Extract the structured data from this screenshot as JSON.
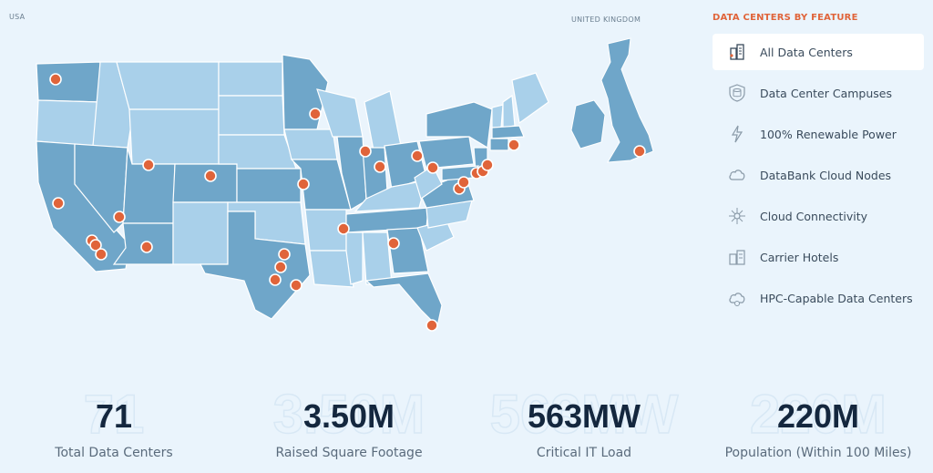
{
  "map": {
    "usa_label": "USA",
    "uk_label": "UNITED KINGDOM",
    "colors": {
      "dark_state": "#6fa6c9",
      "light_state": "#a9d0ea",
      "marker": "#e0643a"
    }
  },
  "features": {
    "heading": "DATA CENTERS BY FEATURE",
    "items": [
      {
        "label": "All Data Centers",
        "icon": "building-icon",
        "active": true
      },
      {
        "label": "Data Center Campuses",
        "icon": "shield-database-icon",
        "active": false
      },
      {
        "label": "100% Renewable Power",
        "icon": "lightning-icon",
        "active": false
      },
      {
        "label": "DataBank Cloud Nodes",
        "icon": "cloud-icon",
        "active": false
      },
      {
        "label": "Cloud Connectivity",
        "icon": "network-icon",
        "active": false
      },
      {
        "label": "Carrier Hotels",
        "icon": "hotel-icon",
        "active": false
      },
      {
        "label": "HPC-Capable Data Centers",
        "icon": "cloud-gear-icon",
        "active": false
      }
    ]
  },
  "stats": [
    {
      "value": "71",
      "label": "Total Data Centers"
    },
    {
      "value": "3.50M",
      "label": "Raised Square Footage"
    },
    {
      "value": "563MW",
      "label": "Critical IT Load"
    },
    {
      "value": "220M",
      "label": "Population (Within 100 Miles)"
    }
  ]
}
